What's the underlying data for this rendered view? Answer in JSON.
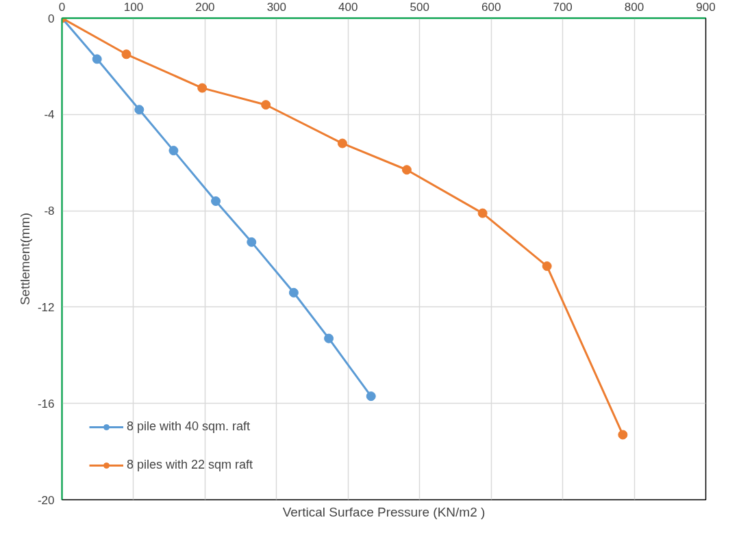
{
  "chart_data": {
    "type": "line",
    "xlabel": "Vertical Surface Pressure (KN/m2 )",
    "ylabel": "Settlement(mm)",
    "xlim": [
      0,
      900
    ],
    "xticks": [
      0,
      100,
      200,
      300,
      400,
      500,
      600,
      700,
      800,
      900
    ],
    "ylim": [
      -20,
      0
    ],
    "yticks": [
      0,
      -4,
      -8,
      -12,
      -16,
      -20
    ],
    "grid": true,
    "legend": "bottom left",
    "marker": "circle",
    "line_style": "solid",
    "series": [
      {
        "name": "8 pile with 40 sqm. raft",
        "color": "#5b9bd5",
        "x": [
          0,
          49,
          108,
          156,
          215,
          265,
          324,
          373,
          432
        ],
        "values": [
          0,
          -1.7,
          -3.8,
          -5.5,
          -7.6,
          -9.3,
          -11.4,
          -13.3,
          -15.7
        ]
      },
      {
        "name": "8 piles with 22 sqm raft",
        "color": "#ed7d31",
        "x": [
          0,
          90,
          196,
          285,
          392,
          482,
          588,
          678,
          784
        ],
        "values": [
          0,
          -1.5,
          -2.9,
          -3.6,
          -5.2,
          -6.3,
          -8.1,
          -10.3,
          -17.3
        ]
      }
    ]
  }
}
